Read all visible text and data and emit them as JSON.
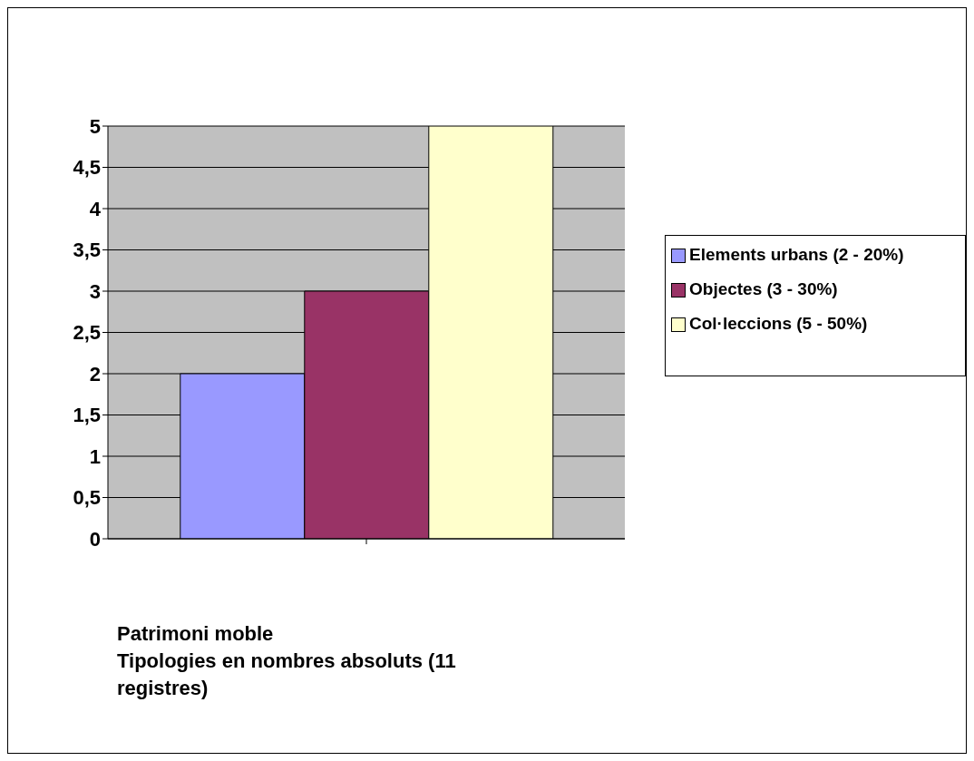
{
  "chart_data": {
    "type": "bar",
    "title": "Patrimoni moble",
    "subtitle": "Tipologies en nombres absoluts (11 registres)",
    "categories": [
      null
    ],
    "series": [
      {
        "name": "Elements urbans (2 - 20%)",
        "color": "#9999ff",
        "values": [
          2
        ]
      },
      {
        "name": "Objectes (3 - 30%)",
        "color": "#993366",
        "values": [
          3
        ]
      },
      {
        "name": "Col·leccions (5 - 50%)",
        "color": "#ffffcc",
        "values": [
          5
        ]
      }
    ],
    "ylim": [
      0,
      5
    ],
    "yticks": [
      0,
      {
        "value": 0.5,
        "label": "0,5"
      },
      1,
      {
        "value": 1.5,
        "label": "1,5"
      },
      2,
      {
        "value": 2.5,
        "label": "2,5"
      },
      3,
      {
        "value": 3.5,
        "label": "3,5"
      },
      4,
      {
        "value": 4.5,
        "label": "4,5"
      },
      5
    ],
    "grid": "y",
    "legend": "right"
  }
}
